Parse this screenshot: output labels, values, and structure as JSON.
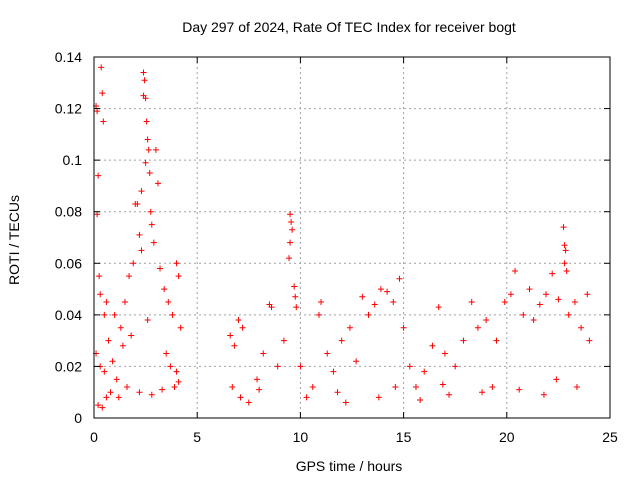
{
  "chart_data": {
    "type": "scatter",
    "title": "Day 297 of 2024, Rate Of TEC Index for receiver bogt",
    "xlabel": "GPS time / hours",
    "ylabel": "ROTI / TECUs",
    "xlim": [
      0,
      25
    ],
    "ylim": [
      0,
      0.14
    ],
    "xticks": [
      0,
      5,
      10,
      15,
      20,
      25
    ],
    "xtick_labels": [
      "0",
      "5",
      "10",
      "15",
      "20",
      "25"
    ],
    "yticks": [
      0,
      0.02,
      0.04,
      0.06,
      0.08,
      0.1,
      0.12,
      0.14
    ],
    "ytick_labels": [
      "0",
      "0.02",
      "0.04",
      "0.06",
      "0.08",
      "0.1",
      "0.12",
      "0.14"
    ],
    "grid": true,
    "marker": "+",
    "color": "#ff0000",
    "series": [
      {
        "name": "ROTI",
        "points": [
          [
            0.1,
            0.121
          ],
          [
            0.15,
            0.119
          ],
          [
            0.2,
            0.094
          ],
          [
            0.15,
            0.079
          ],
          [
            0.35,
            0.136
          ],
          [
            0.4,
            0.126
          ],
          [
            0.45,
            0.115
          ],
          [
            0.3,
            0.048
          ],
          [
            0.25,
            0.055
          ],
          [
            0.5,
            0.04
          ],
          [
            0.2,
            0.005
          ],
          [
            0.4,
            0.004
          ],
          [
            0.6,
            0.008
          ],
          [
            0.8,
            0.01
          ],
          [
            0.1,
            0.025
          ],
          [
            0.3,
            0.02
          ],
          [
            0.5,
            0.018
          ],
          [
            0.7,
            0.03
          ],
          [
            0.9,
            0.022
          ],
          [
            1.1,
            0.015
          ],
          [
            1.3,
            0.035
          ],
          [
            1.5,
            0.045
          ],
          [
            1.7,
            0.055
          ],
          [
            1.9,
            0.06
          ],
          [
            2.0,
            0.083
          ],
          [
            2.1,
            0.083
          ],
          [
            2.2,
            0.071
          ],
          [
            2.3,
            0.065
          ],
          [
            2.4,
            0.134
          ],
          [
            2.45,
            0.131
          ],
          [
            2.4,
            0.125
          ],
          [
            2.5,
            0.124
          ],
          [
            2.55,
            0.115
          ],
          [
            2.6,
            0.108
          ],
          [
            2.65,
            0.104
          ],
          [
            2.5,
            0.099
          ],
          [
            2.7,
            0.095
          ],
          [
            2.3,
            0.088
          ],
          [
            2.75,
            0.08
          ],
          [
            2.8,
            0.075
          ],
          [
            3.0,
            0.104
          ],
          [
            3.1,
            0.091
          ],
          [
            2.9,
            0.068
          ],
          [
            3.2,
            0.058
          ],
          [
            3.4,
            0.05
          ],
          [
            3.6,
            0.045
          ],
          [
            3.8,
            0.04
          ],
          [
            4.0,
            0.06
          ],
          [
            4.1,
            0.055
          ],
          [
            4.2,
            0.035
          ],
          [
            1.2,
            0.008
          ],
          [
            1.6,
            0.012
          ],
          [
            2.2,
            0.01
          ],
          [
            2.8,
            0.009
          ],
          [
            3.3,
            0.011
          ],
          [
            3.9,
            0.012
          ],
          [
            4.1,
            0.014
          ],
          [
            1.0,
            0.04
          ],
          [
            1.4,
            0.028
          ],
          [
            1.8,
            0.032
          ],
          [
            2.6,
            0.038
          ],
          [
            3.5,
            0.025
          ],
          [
            3.7,
            0.02
          ],
          [
            4.0,
            0.018
          ],
          [
            0.6,
            0.045
          ],
          [
            6.6,
            0.032
          ],
          [
            6.8,
            0.028
          ],
          [
            7.0,
            0.038
          ],
          [
            7.2,
            0.035
          ],
          [
            6.7,
            0.012
          ],
          [
            7.1,
            0.008
          ],
          [
            7.5,
            0.006
          ],
          [
            7.9,
            0.015
          ],
          [
            8.2,
            0.025
          ],
          [
            8.5,
            0.044
          ],
          [
            8.6,
            0.043
          ],
          [
            8.9,
            0.02
          ],
          [
            9.2,
            0.03
          ],
          [
            9.5,
            0.079
          ],
          [
            9.55,
            0.076
          ],
          [
            9.6,
            0.073
          ],
          [
            9.5,
            0.068
          ],
          [
            9.45,
            0.062
          ],
          [
            9.7,
            0.051
          ],
          [
            9.75,
            0.047
          ],
          [
            9.8,
            0.043
          ],
          [
            10.0,
            0.02
          ],
          [
            10.3,
            0.008
          ],
          [
            10.6,
            0.012
          ],
          [
            10.9,
            0.04
          ],
          [
            11.0,
            0.045
          ],
          [
            11.3,
            0.025
          ],
          [
            11.6,
            0.018
          ],
          [
            12.0,
            0.03
          ],
          [
            12.4,
            0.035
          ],
          [
            12.7,
            0.022
          ],
          [
            13.0,
            0.047
          ],
          [
            13.3,
            0.04
          ],
          [
            13.6,
            0.044
          ],
          [
            13.9,
            0.05
          ],
          [
            14.2,
            0.049
          ],
          [
            14.5,
            0.045
          ],
          [
            14.8,
            0.054
          ],
          [
            15.0,
            0.035
          ],
          [
            15.3,
            0.02
          ],
          [
            15.6,
            0.012
          ],
          [
            16.0,
            0.018
          ],
          [
            16.4,
            0.028
          ],
          [
            16.7,
            0.043
          ],
          [
            17.0,
            0.025
          ],
          [
            17.5,
            0.02
          ],
          [
            17.9,
            0.03
          ],
          [
            18.3,
            0.045
          ],
          [
            18.6,
            0.035
          ],
          [
            19.0,
            0.038
          ],
          [
            19.5,
            0.03
          ],
          [
            19.9,
            0.045
          ],
          [
            20.2,
            0.048
          ],
          [
            20.4,
            0.057
          ],
          [
            20.8,
            0.04
          ],
          [
            21.1,
            0.05
          ],
          [
            21.3,
            0.038
          ],
          [
            21.6,
            0.044
          ],
          [
            21.9,
            0.048
          ],
          [
            22.2,
            0.056
          ],
          [
            22.5,
            0.046
          ],
          [
            22.75,
            0.074
          ],
          [
            22.8,
            0.067
          ],
          [
            22.85,
            0.065
          ],
          [
            22.8,
            0.06
          ],
          [
            22.9,
            0.057
          ],
          [
            23.0,
            0.04
          ],
          [
            23.3,
            0.045
          ],
          [
            23.6,
            0.035
          ],
          [
            23.9,
            0.048
          ],
          [
            24.0,
            0.03
          ],
          [
            12.2,
            0.006
          ],
          [
            13.8,
            0.008
          ],
          [
            15.8,
            0.007
          ],
          [
            17.2,
            0.009
          ],
          [
            18.8,
            0.01
          ],
          [
            20.6,
            0.011
          ],
          [
            21.8,
            0.009
          ],
          [
            23.4,
            0.012
          ],
          [
            11.8,
            0.01
          ],
          [
            14.6,
            0.012
          ],
          [
            16.9,
            0.013
          ],
          [
            19.3,
            0.012
          ],
          [
            22.4,
            0.015
          ],
          [
            8.0,
            0.011
          ]
        ]
      }
    ]
  }
}
